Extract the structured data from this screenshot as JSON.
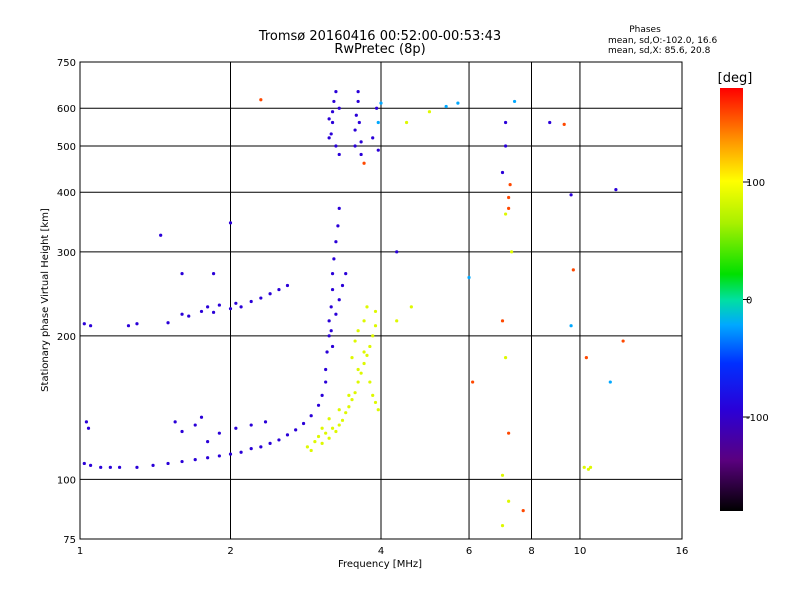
{
  "chart_data": {
    "type": "scatter",
    "title": "Tromsø 20160416 00:52:00-00:53:43",
    "subtitle": "RwPretec (8p)",
    "xlabel": "Frequency [MHz]",
    "ylabel": "Stationary phase Virtual Height [km]",
    "xscale": "log",
    "yscale": "log",
    "xlim": [
      1,
      16
    ],
    "ylim": [
      75,
      750
    ],
    "x_ticks": [
      1,
      2,
      4,
      6,
      8,
      10,
      16
    ],
    "y_ticks": [
      75,
      100,
      200,
      300,
      400,
      500,
      600,
      750
    ],
    "phase_stats": {
      "title": "Phases",
      "o_line": "mean, sd,O:-102.0, 16.6",
      "x_line": "mean, sd,X:  85.6, 20.8"
    },
    "colorbar": {
      "label": "[deg]",
      "range": [
        -180,
        180
      ],
      "ticks": [
        100,
        0,
        -100
      ]
    },
    "series": [
      {
        "name": "O-mode (blue, phase ~ -100)",
        "phase": -100,
        "points": [
          [
            1.02,
            108
          ],
          [
            1.05,
            107
          ],
          [
            1.1,
            106
          ],
          [
            1.15,
            106
          ],
          [
            1.2,
            106
          ],
          [
            1.3,
            106
          ],
          [
            1.4,
            107
          ],
          [
            1.5,
            108
          ],
          [
            1.6,
            109
          ],
          [
            1.7,
            110
          ],
          [
            1.8,
            111
          ],
          [
            1.9,
            112
          ],
          [
            2.0,
            113
          ],
          [
            2.1,
            114
          ],
          [
            2.2,
            116
          ],
          [
            2.3,
            117
          ],
          [
            2.4,
            119
          ],
          [
            2.5,
            121
          ],
          [
            2.6,
            124
          ],
          [
            2.7,
            127
          ],
          [
            2.8,
            131
          ],
          [
            2.9,
            136
          ],
          [
            3.0,
            143
          ],
          [
            3.05,
            150
          ],
          [
            3.1,
            160
          ],
          [
            1.03,
            132
          ],
          [
            1.04,
            128
          ],
          [
            1.55,
            132
          ],
          [
            1.6,
            126
          ],
          [
            1.7,
            130
          ],
          [
            1.75,
            135
          ],
          [
            1.8,
            120
          ],
          [
            1.9,
            125
          ],
          [
            2.05,
            128
          ],
          [
            2.2,
            130
          ],
          [
            2.35,
            132
          ],
          [
            1.25,
            210
          ],
          [
            1.3,
            212
          ],
          [
            1.5,
            213
          ],
          [
            1.6,
            222
          ],
          [
            1.65,
            220
          ],
          [
            1.75,
            225
          ],
          [
            1.8,
            230
          ],
          [
            1.85,
            224
          ],
          [
            1.9,
            232
          ],
          [
            2.0,
            228
          ],
          [
            2.05,
            234
          ],
          [
            2.1,
            230
          ],
          [
            2.2,
            236
          ],
          [
            2.3,
            240
          ],
          [
            2.4,
            245
          ],
          [
            2.5,
            250
          ],
          [
            2.6,
            255
          ],
          [
            1.02,
            212
          ],
          [
            1.05,
            210
          ],
          [
            3.1,
            170
          ],
          [
            3.12,
            185
          ],
          [
            3.15,
            200
          ],
          [
            3.15,
            215
          ],
          [
            3.18,
            230
          ],
          [
            3.2,
            250
          ],
          [
            3.2,
            270
          ],
          [
            3.22,
            290
          ],
          [
            3.25,
            315
          ],
          [
            3.28,
            340
          ],
          [
            3.3,
            370
          ],
          [
            3.2,
            190
          ],
          [
            3.18,
            205
          ],
          [
            3.25,
            222
          ],
          [
            3.3,
            238
          ],
          [
            3.35,
            255
          ],
          [
            3.4,
            270
          ],
          [
            3.18,
            530
          ],
          [
            3.2,
            560
          ],
          [
            3.2,
            590
          ],
          [
            3.22,
            620
          ],
          [
            3.25,
            650
          ],
          [
            3.25,
            500
          ],
          [
            3.3,
            480
          ],
          [
            3.3,
            600
          ],
          [
            3.15,
            570
          ],
          [
            3.15,
            520
          ],
          [
            3.55,
            500
          ],
          [
            3.55,
            540
          ],
          [
            3.57,
            580
          ],
          [
            3.6,
            620
          ],
          [
            3.6,
            650
          ],
          [
            3.62,
            560
          ],
          [
            3.65,
            510
          ],
          [
            3.65,
            480
          ],
          [
            3.85,
            520
          ],
          [
            3.92,
            600
          ],
          [
            3.95,
            490
          ],
          [
            7.1,
            560
          ],
          [
            7.1,
            500
          ],
          [
            7.0,
            440
          ],
          [
            8.7,
            560
          ],
          [
            11.8,
            405
          ],
          [
            1.45,
            325
          ],
          [
            1.6,
            270
          ],
          [
            1.85,
            270
          ],
          [
            2.0,
            345
          ],
          [
            4.3,
            300
          ],
          [
            9.6,
            395
          ]
        ]
      },
      {
        "name": "X-mode (yellow-green, phase ~ +85)",
        "phase": 85,
        "points": [
          [
            2.95,
            120
          ],
          [
            3.0,
            123
          ],
          [
            3.05,
            119
          ],
          [
            3.1,
            125
          ],
          [
            3.15,
            122
          ],
          [
            3.2,
            128
          ],
          [
            3.25,
            126
          ],
          [
            3.3,
            130
          ],
          [
            3.35,
            133
          ],
          [
            3.4,
            138
          ],
          [
            3.45,
            142
          ],
          [
            3.5,
            147
          ],
          [
            3.55,
            152
          ],
          [
            3.6,
            160
          ],
          [
            3.65,
            167
          ],
          [
            3.7,
            175
          ],
          [
            3.75,
            182
          ],
          [
            3.8,
            190
          ],
          [
            3.85,
            200
          ],
          [
            3.9,
            210
          ],
          [
            3.9,
            225
          ],
          [
            3.5,
            180
          ],
          [
            3.55,
            195
          ],
          [
            3.6,
            205
          ],
          [
            3.7,
            215
          ],
          [
            3.75,
            230
          ],
          [
            3.8,
            160
          ],
          [
            3.85,
            150
          ],
          [
            3.9,
            145
          ],
          [
            3.95,
            140
          ],
          [
            2.85,
            117
          ],
          [
            2.9,
            115
          ],
          [
            3.05,
            128
          ],
          [
            3.15,
            134
          ],
          [
            3.3,
            140
          ],
          [
            3.45,
            150
          ],
          [
            3.6,
            170
          ],
          [
            3.7,
            185
          ],
          [
            10.2,
            106
          ],
          [
            10.4,
            105
          ],
          [
            10.5,
            106
          ],
          [
            7.0,
            80
          ],
          [
            7.0,
            102
          ],
          [
            7.2,
            90
          ],
          [
            7.1,
            180
          ],
          [
            7.3,
            300
          ],
          [
            7.1,
            360
          ],
          [
            5.0,
            590
          ],
          [
            4.5,
            560
          ],
          [
            4.6,
            230
          ],
          [
            4.3,
            215
          ]
        ]
      },
      {
        "name": "Scattered (red/orange)",
        "phase": 160,
        "points": [
          [
            2.3,
            625
          ],
          [
            3.7,
            460
          ],
          [
            7.2,
            370
          ],
          [
            7.25,
            415
          ],
          [
            7.2,
            125
          ],
          [
            7.7,
            86
          ],
          [
            9.3,
            555
          ],
          [
            9.7,
            275
          ],
          [
            6.1,
            160
          ],
          [
            10.3,
            180
          ],
          [
            12.2,
            195
          ],
          [
            7.0,
            215
          ],
          [
            7.2,
            390
          ]
        ]
      },
      {
        "name": "Scattered (cyan)",
        "phase": -20,
        "points": [
          [
            5.7,
            615
          ],
          [
            6.0,
            265
          ],
          [
            7.4,
            620
          ],
          [
            9.6,
            210
          ],
          [
            11.5,
            160
          ],
          [
            5.4,
            605
          ],
          [
            4.0,
            615
          ],
          [
            3.95,
            560
          ]
        ]
      }
    ]
  }
}
